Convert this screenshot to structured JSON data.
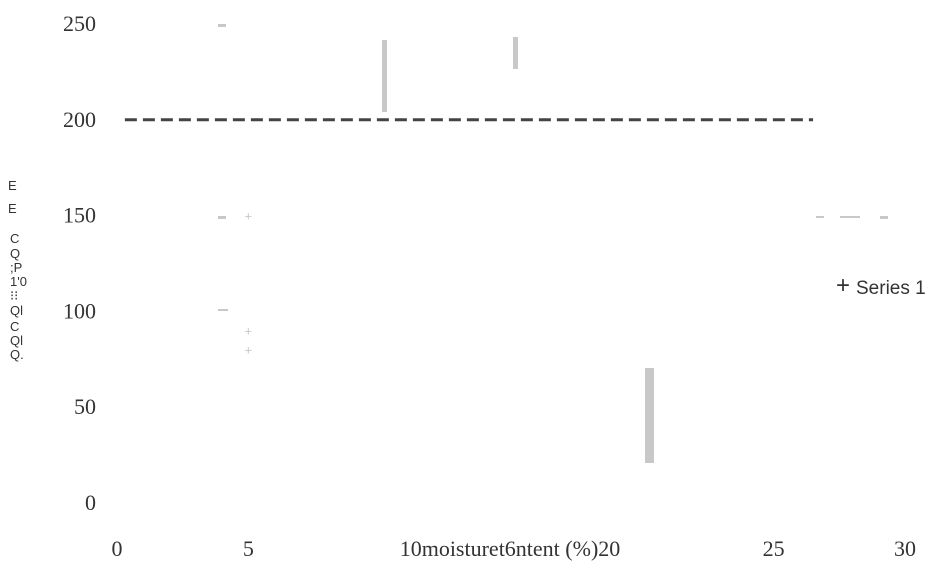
{
  "chart_data": {
    "type": "scatter",
    "title": "",
    "xlabel": "10moisturet6ntent  (%)20",
    "ylabel": "E E C Q ; P 1'0 ⁝⁝ Ql C Ql Q.",
    "xlim": [
      0,
      30
    ],
    "ylim": [
      0,
      250
    ],
    "x_ticks": [
      {
        "value": 0,
        "label": "0"
      },
      {
        "value": 5,
        "label": "5"
      },
      {
        "value": 25,
        "label": "25"
      },
      {
        "value": 30,
        "label": "30"
      }
    ],
    "y_ticks": [
      {
        "value": 0,
        "label": "0"
      },
      {
        "value": 50,
        "label": "50"
      },
      {
        "value": 100,
        "label": "100"
      },
      {
        "value": 150,
        "label": "150"
      },
      {
        "value": 200,
        "label": "200"
      },
      {
        "value": 250,
        "label": "250"
      }
    ],
    "grid": false,
    "legend_position": "right",
    "series": [
      {
        "name": "Series 1",
        "marker": "+",
        "color": "#c8c8c8",
        "points": [
          {
            "x": 5,
            "y": 150
          },
          {
            "x": 5,
            "y": 90
          },
          {
            "x": 5,
            "y": 80
          }
        ]
      }
    ],
    "reference_line": {
      "y": 200,
      "x_start": 0.3,
      "x_end": 26.5,
      "style": "dashed",
      "color": "#444444"
    }
  }
}
